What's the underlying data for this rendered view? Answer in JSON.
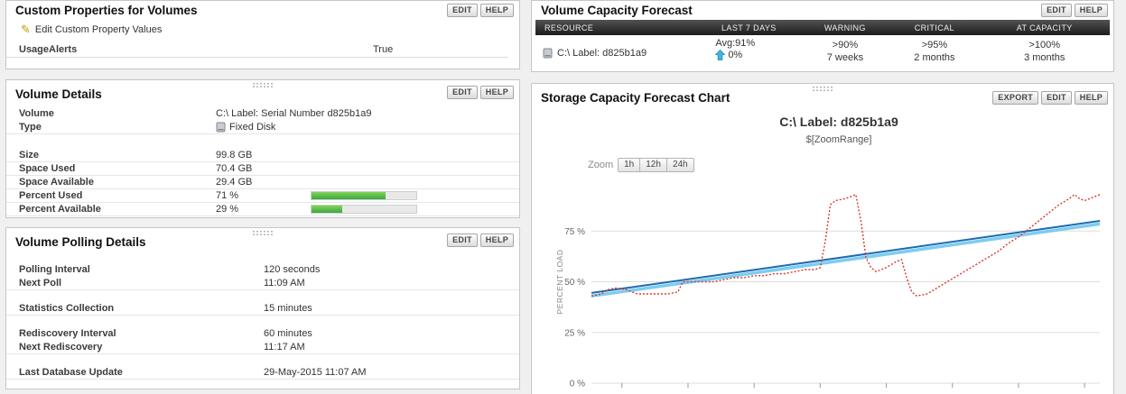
{
  "colors": {
    "bar_fill_green": "#3aa943",
    "table_header_bg": "#2e2e2e",
    "trend_up_arrow": "#41b6e8",
    "series_red": "#d8372c",
    "series_dark_blue": "#1d6ab2",
    "series_light_blue": "#7ccdef"
  },
  "custom_properties": {
    "title": "Custom Properties for Volumes",
    "edit_button": "EDIT",
    "help_button": "HELP",
    "edit_link": "Edit Custom Property Values",
    "property_label": "UsageAlerts",
    "property_value": "True"
  },
  "volume_details": {
    "title": "Volume Details",
    "edit_button": "EDIT",
    "help_button": "HELP",
    "rows": {
      "volume": {
        "label": "Volume",
        "value": "C:\\ Label: Serial Number d825b1a9"
      },
      "type": {
        "label": "Type",
        "value": "Fixed Disk"
      },
      "size": {
        "label": "Size",
        "value": "99.8 GB"
      },
      "space_used": {
        "label": "Space Used",
        "value": "70.4 GB"
      },
      "space_available": {
        "label": "Space Available",
        "value": "29.4 GB"
      },
      "percent_used": {
        "label": "Percent Used",
        "value": "71 %",
        "percent": 71
      },
      "percent_available": {
        "label": "Percent Available",
        "value": "29 %",
        "percent": 29
      }
    }
  },
  "volume_polling": {
    "title": "Volume Polling Details",
    "edit_button": "EDIT",
    "help_button": "HELP",
    "rows": {
      "polling_interval": {
        "label": "Polling Interval",
        "value": "120 seconds"
      },
      "next_poll": {
        "label": "Next Poll",
        "value": "11:09 AM"
      },
      "statistics_collection": {
        "label": "Statistics Collection",
        "value": "15 minutes"
      },
      "rediscovery_interval": {
        "label": "Rediscovery Interval",
        "value": "60 minutes"
      },
      "next_rediscovery": {
        "label": "Next Rediscovery",
        "value": "11:17 AM"
      },
      "last_database_update": {
        "label": "Last Database Update",
        "value": "29-May-2015 11:07 AM"
      }
    }
  },
  "capacity_forecast": {
    "title": "Volume Capacity Forecast",
    "edit_button": "EDIT",
    "help_button": "HELP",
    "columns": {
      "resource": "RESOURCE",
      "last7": "LAST 7 DAYS",
      "warning": "WARNING",
      "critical": "CRITICAL",
      "at_capacity": "AT CAPACITY"
    },
    "row": {
      "resource": "C:\\ Label: d825b1a9",
      "avg": "Avg:91%",
      "trend": "0%",
      "warning_threshold": ">90%",
      "warning_time": "7 weeks",
      "critical_threshold": ">95%",
      "critical_time": "2 months",
      "capacity_threshold": ">100%",
      "capacity_time": "3 months"
    }
  },
  "chart_panel": {
    "title": "Storage Capacity Forecast Chart",
    "export_button": "EXPORT",
    "edit_button": "EDIT",
    "help_button": "HELP",
    "zoom_label": "Zoom",
    "zoom_1h": "1h",
    "zoom_12h": "12h",
    "zoom_24h": "24h"
  },
  "chart_data": {
    "type": "line",
    "title": "C:\\ Label: d825b1a9",
    "subtitle": "$[ZoomRange]",
    "ylabel": "PERCENT LOAD",
    "ylim": [
      0,
      100
    ],
    "yticks": [
      0,
      25,
      50,
      75
    ],
    "ytick_labels": [
      "0 %",
      "25 %",
      "50 %",
      "75 %"
    ],
    "xticks": [
      6,
      19,
      32,
      45,
      58,
      71,
      84,
      97
    ],
    "grid": true,
    "legend": "none",
    "series": [
      {
        "name": "trend-light",
        "color": "#7ccdef",
        "width": 3.5,
        "points": [
          [
            0,
            43
          ],
          [
            100,
            78.5
          ]
        ]
      },
      {
        "name": "trend-dark",
        "color": "#1d6ab2",
        "width": 2,
        "points": [
          [
            0,
            44.5
          ],
          [
            100,
            80
          ]
        ]
      },
      {
        "name": "percent-load",
        "color": "#d8372c",
        "width": 1.4,
        "dash": "2,2",
        "points": [
          [
            0,
            43
          ],
          [
            2,
            44
          ],
          [
            3,
            46
          ],
          [
            5,
            47
          ],
          [
            7,
            46
          ],
          [
            9,
            44
          ],
          [
            12,
            44
          ],
          [
            15,
            44
          ],
          [
            17,
            45
          ],
          [
            18,
            50
          ],
          [
            21,
            50
          ],
          [
            24,
            50
          ],
          [
            26,
            51
          ],
          [
            28,
            52
          ],
          [
            30,
            52
          ],
          [
            32,
            53
          ],
          [
            34,
            53
          ],
          [
            36,
            54
          ],
          [
            38,
            54
          ],
          [
            40,
            55
          ],
          [
            42,
            56
          ],
          [
            44,
            56
          ],
          [
            45,
            57
          ],
          [
            46,
            70
          ],
          [
            47,
            88
          ],
          [
            48,
            90
          ],
          [
            50,
            91
          ],
          [
            51,
            92
          ],
          [
            52,
            93
          ],
          [
            53,
            80
          ],
          [
            54,
            62
          ],
          [
            55,
            57
          ],
          [
            56,
            55
          ],
          [
            58,
            57
          ],
          [
            60,
            60
          ],
          [
            61,
            61
          ],
          [
            62,
            52
          ],
          [
            63,
            45
          ],
          [
            64,
            43
          ],
          [
            66,
            44
          ],
          [
            68,
            47
          ],
          [
            70,
            50
          ],
          [
            72,
            53
          ],
          [
            74,
            56
          ],
          [
            76,
            59
          ],
          [
            78,
            62
          ],
          [
            80,
            65
          ],
          [
            82,
            69
          ],
          [
            84,
            72
          ],
          [
            86,
            76
          ],
          [
            88,
            80
          ],
          [
            90,
            84
          ],
          [
            92,
            88
          ],
          [
            94,
            91
          ],
          [
            95,
            93
          ],
          [
            96,
            91
          ],
          [
            97,
            90
          ],
          [
            98,
            91
          ],
          [
            100,
            93
          ]
        ]
      }
    ]
  }
}
